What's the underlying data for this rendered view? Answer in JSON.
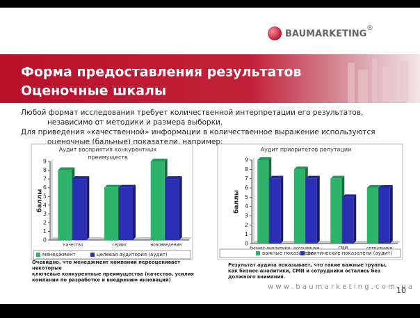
{
  "logo": {
    "text": "BAUMARKETING",
    "mark": "®"
  },
  "header": {
    "title_line1": "Форма предоставления результатов",
    "title_line2": "Оценочные шкалы"
  },
  "intro": [
    "Любой формат исследования требует количественной интерпретации его результатов,",
    "независимо от методики и размера выборки.",
    "Для приведения «качественной» информации в количественное выражение используются",
    "оценочные (бальные) показатели, например:"
  ],
  "chart_data": [
    {
      "type": "bar",
      "title": [
        "Аудит восприятия конкурентных",
        "преимуществ"
      ],
      "y_label": "баллы",
      "categories": [
        "качество",
        "сервис",
        "нововведения"
      ],
      "series": [
        {
          "name": "менеджмент",
          "color": "#2eb36b",
          "values": [
            8,
            6,
            9
          ]
        },
        {
          "name": "целевая аудитория (аудит)",
          "color": "#2b2fb5",
          "values": [
            7,
            6,
            7
          ]
        }
      ],
      "ylim": [
        0,
        9
      ],
      "yticks": [
        0,
        1,
        2,
        3,
        4,
        5,
        6,
        7,
        8,
        9
      ],
      "grid": false
    },
    {
      "type": "bar",
      "title": [
        "Аудит приоритетов репутации"
      ],
      "y_label": "баллы",
      "categories": [
        "бизнес-аналитики",
        "ассоциации",
        "СМИ",
        "сотрудники"
      ],
      "series": [
        {
          "name": "важные показатели",
          "color": "#2eb36b",
          "values": [
            9,
            8,
            7,
            6
          ]
        },
        {
          "name": "фактические показатели (аудит)",
          "color": "#2b2fb5",
          "values": [
            7,
            7,
            5,
            6
          ]
        }
      ],
      "ylim": [
        0,
        9
      ],
      "yticks": [
        0,
        1,
        2,
        3,
        4,
        5,
        6,
        7,
        8,
        9
      ],
      "grid": false
    }
  ],
  "captions": [
    [
      "Очевидно, что менеджмент компании переоценивает",
      "некоторые",
      "ключевые конкурентные преимущества (качество, усилия",
      "компании по разработке и внедрению инноваций)"
    ],
    [
      "Результат аудита показывает, что такие важные группы,",
      "как бизнес-аналитики, СМИ и сотрудники остались без",
      "должного внимания."
    ]
  ],
  "footer": {
    "url": "w w w . b a u m a r k e t i n g . c o m . u a",
    "page": "10"
  }
}
